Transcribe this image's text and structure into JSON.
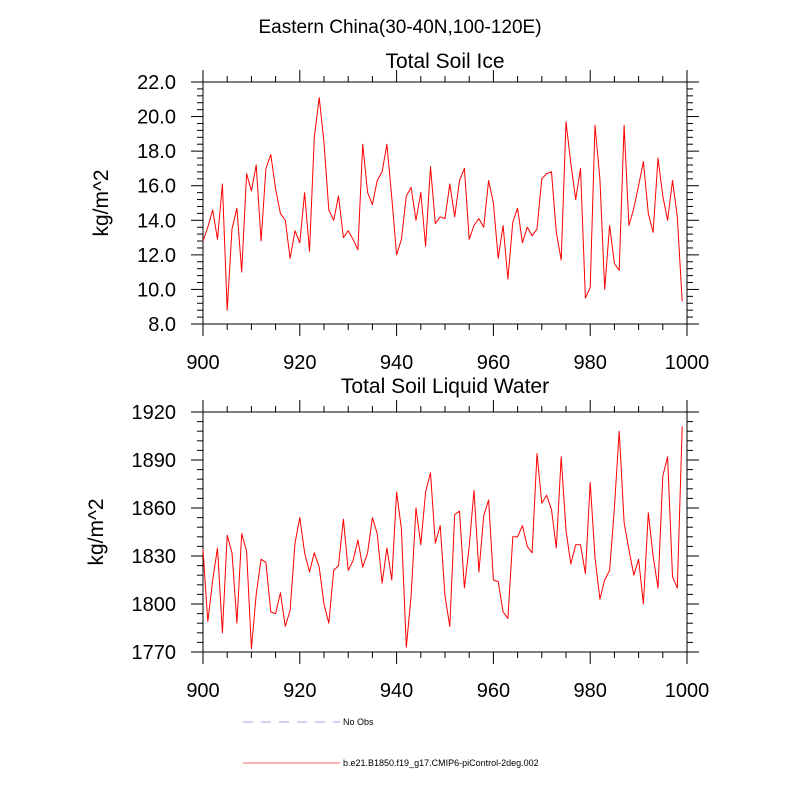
{
  "figure": {
    "title": "Eastern China(30-40N,100-120E)"
  },
  "chart_data": [
    {
      "type": "line",
      "title": "Total Soil Ice",
      "xlabel": "",
      "ylabel": "kg/m^2",
      "xlim": [
        900,
        1000
      ],
      "ylim": [
        8.0,
        22.0
      ],
      "xticks": [
        900,
        920,
        940,
        960,
        980,
        1000
      ],
      "yticks": [
        8.0,
        10.0,
        12.0,
        14.0,
        16.0,
        18.0,
        20.0,
        22.0
      ],
      "ytick_labels": [
        "8.0",
        "10.0",
        "12.0",
        "14.0",
        "16.0",
        "18.0",
        "20.0",
        "22.0"
      ],
      "series": [
        {
          "name": "b.e21.B1850.f19_g17.CMIP6-piControl-2deg.002",
          "color": "#ff0000",
          "x": [
            900,
            901,
            902,
            903,
            904,
            905,
            906,
            907,
            908,
            909,
            910,
            911,
            912,
            913,
            914,
            915,
            916,
            917,
            918,
            919,
            920,
            921,
            922,
            923,
            924,
            925,
            926,
            927,
            928,
            929,
            930,
            931,
            932,
            933,
            934,
            935,
            936,
            937,
            938,
            939,
            940,
            941,
            942,
            943,
            944,
            945,
            946,
            947,
            948,
            949,
            950,
            951,
            952,
            953,
            954,
            955,
            956,
            957,
            958,
            959,
            960,
            961,
            962,
            963,
            964,
            965,
            966,
            967,
            968,
            969,
            970,
            971,
            972,
            973,
            974,
            975,
            976,
            977,
            978,
            979,
            980,
            981,
            982,
            983,
            984,
            985,
            986,
            987,
            988,
            989,
            990,
            991,
            992,
            993,
            994,
            995,
            996,
            997,
            998,
            999
          ],
          "values": [
            12.8,
            13.6,
            14.6,
            12.9,
            16.1,
            8.8,
            13.5,
            14.7,
            11.0,
            16.7,
            15.7,
            17.2,
            12.8,
            17.0,
            17.8,
            15.8,
            14.4,
            14.0,
            11.8,
            13.4,
            12.7,
            15.6,
            12.2,
            18.8,
            21.1,
            18.5,
            14.6,
            14.0,
            15.4,
            13.0,
            13.4,
            12.9,
            12.3,
            18.4,
            15.6,
            14.9,
            16.3,
            16.8,
            18.4,
            15.3,
            12.0,
            12.9,
            15.4,
            15.9,
            14.0,
            15.6,
            12.5,
            17.1,
            13.8,
            14.2,
            14.1,
            16.1,
            14.2,
            16.3,
            17.0,
            12.9,
            13.7,
            14.1,
            13.6,
            16.3,
            15.0,
            11.8,
            13.7,
            10.6,
            13.9,
            14.7,
            12.7,
            13.6,
            13.1,
            13.5,
            16.4,
            16.7,
            16.8,
            13.3,
            11.7,
            19.7,
            17.3,
            15.2,
            17.0,
            9.5,
            10.1,
            19.5,
            16.4,
            10.0,
            13.7,
            11.5,
            11.1,
            19.5,
            13.7,
            14.7,
            16.0,
            17.4,
            14.4,
            13.3,
            17.6,
            15.4,
            14.0,
            16.3,
            14.2,
            9.3
          ]
        }
      ]
    },
    {
      "type": "line",
      "title": "Total Soil Liquid Water",
      "xlabel": "",
      "ylabel": "kg/m^2",
      "xlim": [
        900,
        1000
      ],
      "ylim": [
        1770,
        1920
      ],
      "xticks": [
        900,
        920,
        940,
        960,
        980,
        1000
      ],
      "yticks": [
        1770,
        1800,
        1830,
        1860,
        1890,
        1920
      ],
      "ytick_labels": [
        "1770",
        "1800",
        "1830",
        "1860",
        "1890",
        "1920"
      ],
      "series": [
        {
          "name": "b.e21.B1850.f19_g17.CMIP6-piControl-2deg.002",
          "color": "#ff0000",
          "x": [
            900,
            901,
            902,
            903,
            904,
            905,
            906,
            907,
            908,
            909,
            910,
            911,
            912,
            913,
            914,
            915,
            916,
            917,
            918,
            919,
            920,
            921,
            922,
            923,
            924,
            925,
            926,
            927,
            928,
            929,
            930,
            931,
            932,
            933,
            934,
            935,
            936,
            937,
            938,
            939,
            940,
            941,
            942,
            943,
            944,
            945,
            946,
            947,
            948,
            949,
            950,
            951,
            952,
            953,
            954,
            955,
            956,
            957,
            958,
            959,
            960,
            961,
            962,
            963,
            964,
            965,
            966,
            967,
            968,
            969,
            970,
            971,
            972,
            973,
            974,
            975,
            976,
            977,
            978,
            979,
            980,
            981,
            982,
            983,
            984,
            985,
            986,
            987,
            988,
            989,
            990,
            991,
            992,
            993,
            994,
            995,
            996,
            997,
            998,
            999
          ],
          "values": [
            1834,
            1789,
            1815,
            1835,
            1782,
            1843,
            1832,
            1788,
            1844,
            1833,
            1772,
            1806,
            1828,
            1826,
            1795,
            1794,
            1807,
            1786,
            1796,
            1838,
            1854,
            1832,
            1820,
            1832,
            1823,
            1800,
            1788,
            1821,
            1824,
            1853,
            1821,
            1827,
            1840,
            1823,
            1832,
            1854,
            1844,
            1813,
            1835,
            1815,
            1870,
            1847,
            1773,
            1805,
            1860,
            1837,
            1870,
            1882,
            1838,
            1849,
            1805,
            1786,
            1856,
            1858,
            1810,
            1836,
            1871,
            1820,
            1855,
            1865,
            1815,
            1814,
            1795,
            1791,
            1842,
            1842,
            1849,
            1836,
            1832,
            1894,
            1863,
            1868,
            1859,
            1835,
            1892,
            1846,
            1825,
            1837,
            1837,
            1819,
            1876,
            1829,
            1803,
            1815,
            1821,
            1860,
            1908,
            1851,
            1834,
            1818,
            1828,
            1800,
            1857,
            1830,
            1810,
            1880,
            1892,
            1817,
            1810,
            1911
          ]
        }
      ]
    }
  ],
  "legend": {
    "items": [
      {
        "label": "No Obs",
        "color": "#a0a0e6",
        "style": "dashed"
      },
      {
        "label": "b.e21.B1850.f19_g17.CMIP6-piControl-2deg.002",
        "color": "#ff6a6a",
        "style": "solid"
      }
    ]
  }
}
